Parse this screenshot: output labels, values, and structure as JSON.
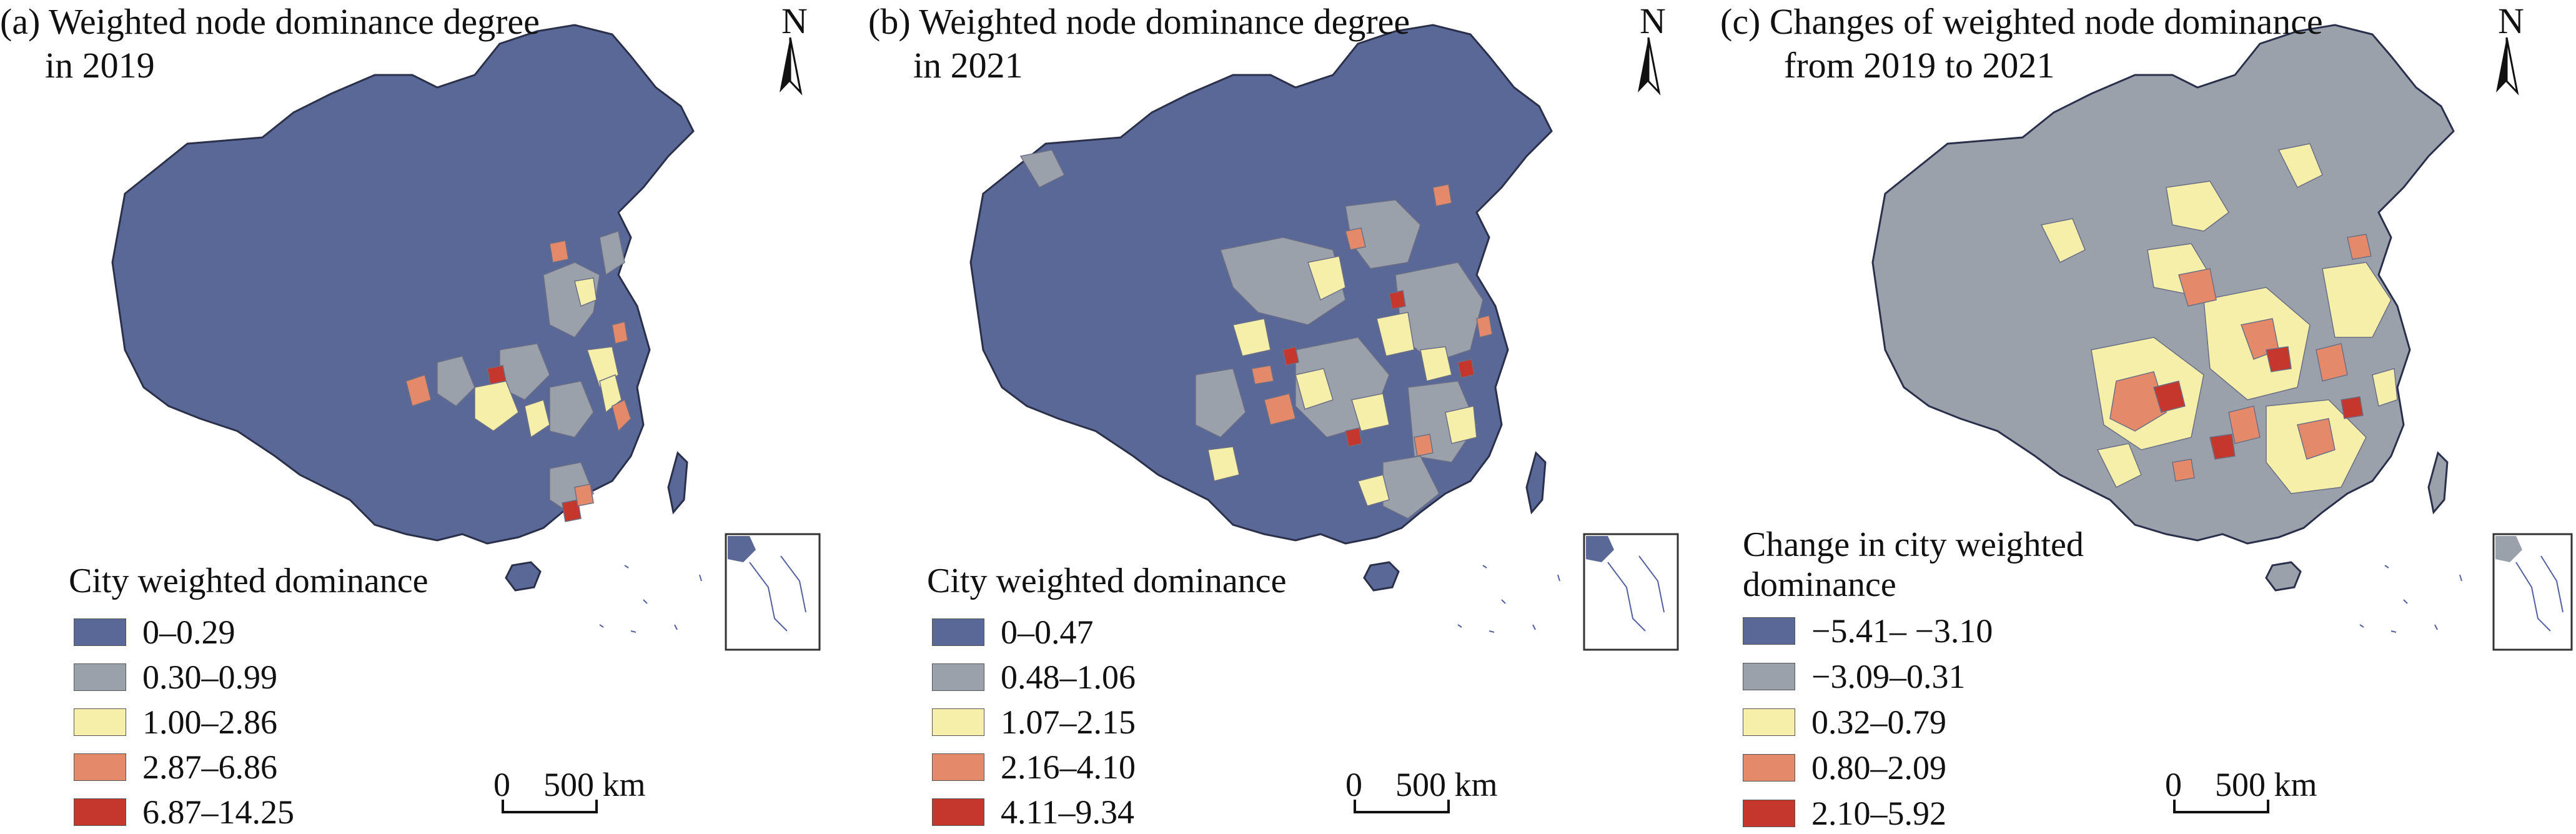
{
  "panels": [
    {
      "title_line1": "(a) Weighted node dominance degree",
      "title_line2": "in 2019",
      "legend_title_line1": "City weighted dominance",
      "legend_title_line2": "",
      "legend": [
        {
          "label": "0–0.29",
          "color": "#5a6897"
        },
        {
          "label": "0.30–0.99",
          "color": "#9aa1ab"
        },
        {
          "label": "1.00–2.86",
          "color": "#f5efaa"
        },
        {
          "label": "2.87–6.86",
          "color": "#e48a6a"
        },
        {
          "label": "6.87–14.25",
          "color": "#c5362c"
        }
      ],
      "base_color": "#5a6897",
      "north_label": "N",
      "scale_zero": "0",
      "scale_distance": "500 km"
    },
    {
      "title_line1": "(b) Weighted node dominance degree",
      "title_line2": "in 2021",
      "legend_title_line1": "City weighted dominance",
      "legend_title_line2": "",
      "legend": [
        {
          "label": "0–0.47",
          "color": "#5a6897"
        },
        {
          "label": "0.48–1.06",
          "color": "#9aa1ab"
        },
        {
          "label": "1.07–2.15",
          "color": "#f5efaa"
        },
        {
          "label": "2.16–4.10",
          "color": "#e48a6a"
        },
        {
          "label": "4.11–9.34",
          "color": "#c5362c"
        }
      ],
      "base_color": "#5a6897",
      "north_label": "N",
      "scale_zero": "0",
      "scale_distance": "500 km"
    },
    {
      "title_line1": "(c) Changes of weighted node dominance",
      "title_line2": "from 2019 to 2021",
      "legend_title_line1": "Change in city weighted",
      "legend_title_line2": "dominance",
      "legend": [
        {
          "label": "−5.41– −3.10",
          "color": "#5a6897"
        },
        {
          "label": "−3.09–0.31",
          "color": "#9aa1ab"
        },
        {
          "label": "0.32–0.79",
          "color": "#f5efaa"
        },
        {
          "label": "0.80–2.09",
          "color": "#e48a6a"
        },
        {
          "label": "2.10–5.92",
          "color": "#c5362c"
        }
      ],
      "base_color": "#9aa1ab",
      "north_label": "N",
      "scale_zero": "0",
      "scale_distance": "500 km"
    }
  ]
}
